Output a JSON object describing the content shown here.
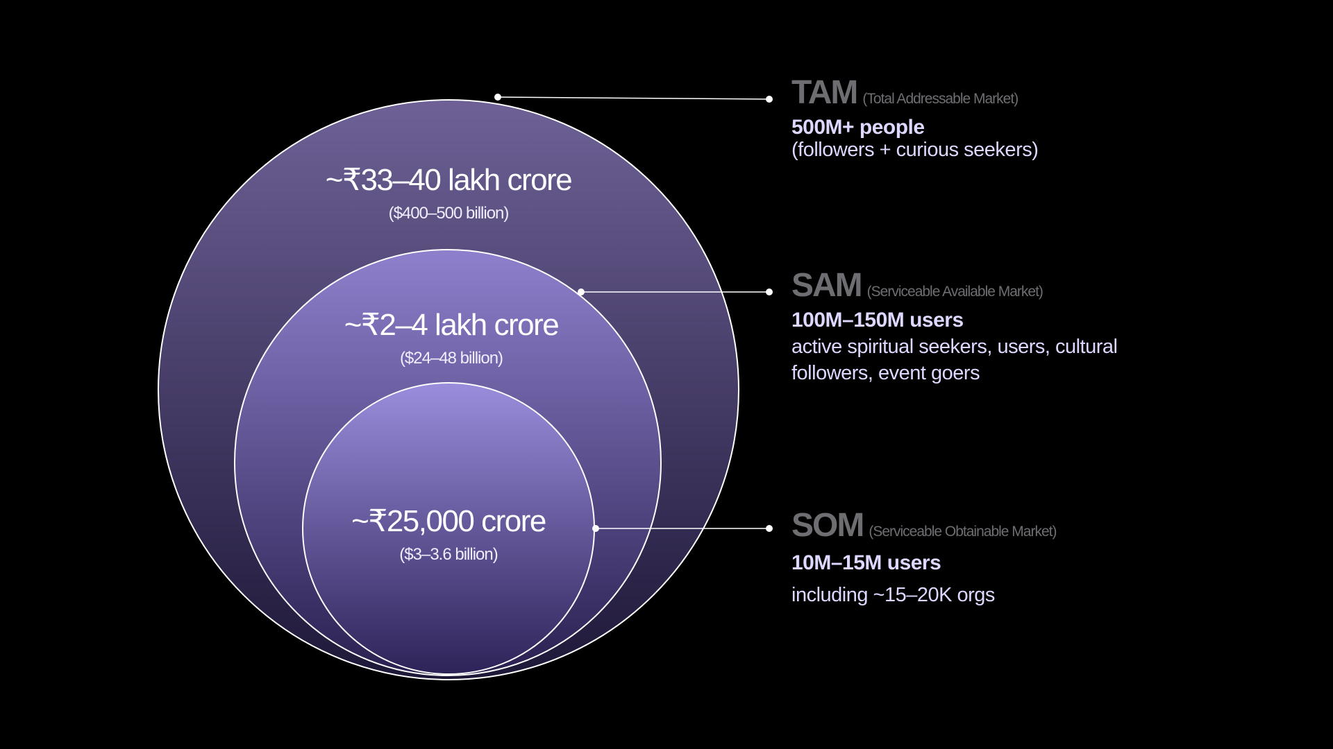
{
  "colors": {
    "background": "#000000",
    "circle_top": "#9488d8",
    "circle_bottom": "#2a2050",
    "outline": "#ffffff",
    "heading": "#6e6e72",
    "text": "#ddd8ff"
  },
  "circles": {
    "tam": {
      "value": "~₹33–40 lakh crore",
      "usd": "($400–500 billion)"
    },
    "sam": {
      "value": "~₹2–4 lakh crore",
      "usd": "($24–48 billion)"
    },
    "som": {
      "value": "~₹25,000 crore",
      "usd": "($3–3.6 billion)"
    }
  },
  "legend": {
    "tam": {
      "abbr": "TAM",
      "full": "(Total Addressable Market)",
      "stat": "500M+ people",
      "desc": [
        "(followers + curious seekers)"
      ]
    },
    "sam": {
      "abbr": "SAM",
      "full": "(Serviceable Available Market)",
      "stat": "100M–150M users",
      "desc": [
        "active spiritual seekers, users, cultural",
        "followers, event goers"
      ]
    },
    "som": {
      "abbr": "SOM",
      "full": "(Serviceable Obtainable Market)",
      "stat": "10M–15M users",
      "desc": [
        "including ~15–20K orgs"
      ]
    }
  }
}
